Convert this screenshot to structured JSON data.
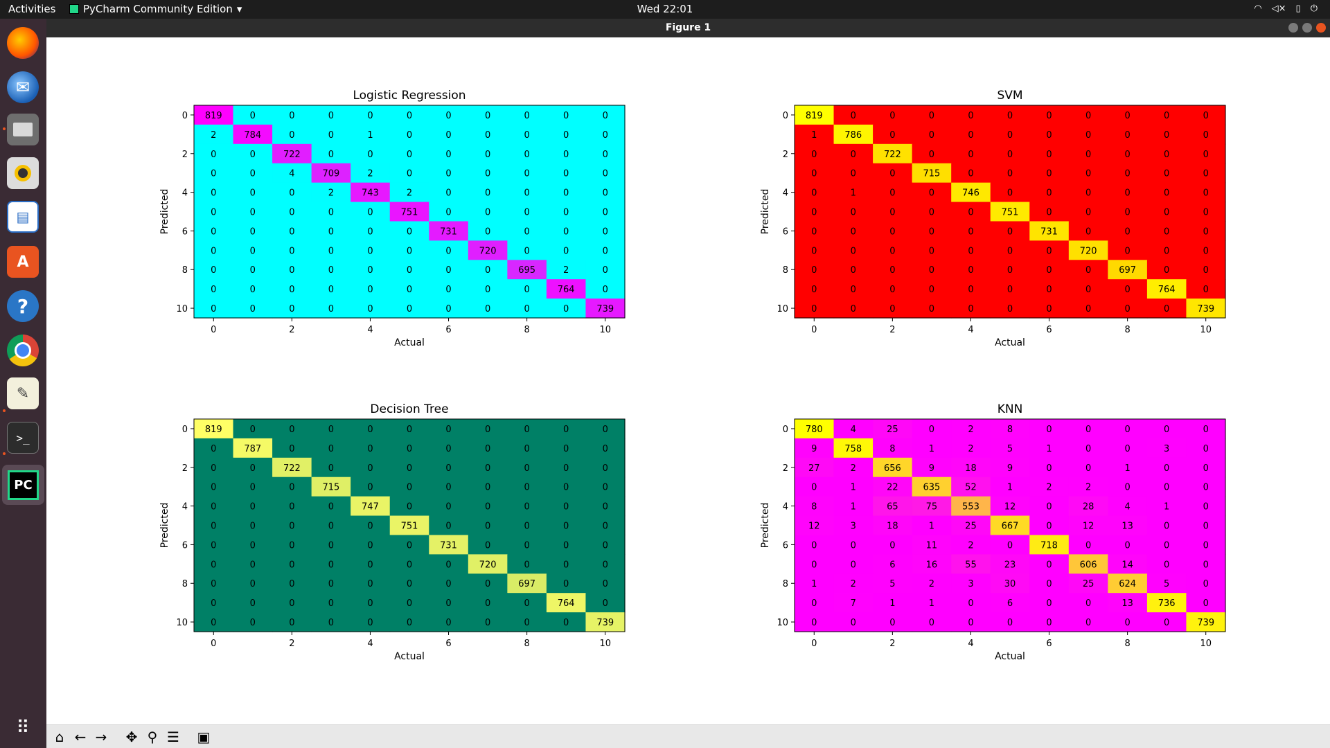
{
  "topbar": {
    "activities": "Activities",
    "app_name": "PyCharm Community Edition",
    "app_menu_icon": "chevron-down-icon",
    "clock": "Wed 22:01",
    "tray_icons": [
      "wifi-icon",
      "volume-muted-icon",
      "battery-icon",
      "power-icon"
    ]
  },
  "window": {
    "title": "Figure 1",
    "controls": [
      "minimize-icon",
      "maximize-icon",
      "close-icon"
    ]
  },
  "dock": {
    "apps": [
      {
        "name": "firefox",
        "icon": "firefox-icon",
        "running": false
      },
      {
        "name": "thunderbird",
        "icon": "mail-icon",
        "running": false
      },
      {
        "name": "files",
        "icon": "files-icon",
        "running": true
      },
      {
        "name": "rhythmbox",
        "icon": "music-icon",
        "running": false
      },
      {
        "name": "libreoffice-writer",
        "icon": "document-icon",
        "running": false
      },
      {
        "name": "software",
        "icon": "software-store-icon",
        "running": false
      },
      {
        "name": "help",
        "icon": "help-icon",
        "running": false
      },
      {
        "name": "chrome",
        "icon": "chrome-icon",
        "running": false
      },
      {
        "name": "text-editor",
        "icon": "text-editor-icon",
        "running": true
      },
      {
        "name": "terminal",
        "icon": "terminal-icon",
        "running": true
      },
      {
        "name": "pycharm",
        "icon": "pycharm-icon",
        "running": true
      },
      {
        "name": "show-applications",
        "icon": "grid-icon",
        "running": false
      }
    ],
    "pycharm_label": "PC",
    "terminal_label": ">_"
  },
  "toolbar": {
    "buttons": [
      "home-icon",
      "back-icon",
      "forward-icon",
      "pan-icon",
      "zoom-icon",
      "configure-subplots-icon",
      "save-icon"
    ]
  },
  "chart_data": [
    {
      "type": "heatmap",
      "title": "Logistic Regression",
      "xlabel": "Actual",
      "ylabel": "Predicted",
      "xticks": [
        0,
        2,
        4,
        6,
        8,
        10
      ],
      "yticks": [
        0,
        2,
        4,
        6,
        8,
        10
      ],
      "colormap": "cool",
      "colors": {
        "low": "#00ffff",
        "high": "#ff00ff"
      },
      "matrix": [
        [
          819,
          0,
          0,
          0,
          0,
          0,
          0,
          0,
          0,
          0,
          0
        ],
        [
          2,
          784,
          0,
          0,
          1,
          0,
          0,
          0,
          0,
          0,
          0
        ],
        [
          0,
          0,
          722,
          0,
          0,
          0,
          0,
          0,
          0,
          0,
          0
        ],
        [
          0,
          0,
          4,
          709,
          2,
          0,
          0,
          0,
          0,
          0,
          0
        ],
        [
          0,
          0,
          0,
          2,
          743,
          2,
          0,
          0,
          0,
          0,
          0
        ],
        [
          0,
          0,
          0,
          0,
          0,
          751,
          0,
          0,
          0,
          0,
          0
        ],
        [
          0,
          0,
          0,
          0,
          0,
          0,
          731,
          0,
          0,
          0,
          0
        ],
        [
          0,
          0,
          0,
          0,
          0,
          0,
          0,
          720,
          0,
          0,
          0
        ],
        [
          0,
          0,
          0,
          0,
          0,
          0,
          0,
          0,
          695,
          2,
          0
        ],
        [
          0,
          0,
          0,
          0,
          0,
          0,
          0,
          0,
          0,
          764,
          0
        ],
        [
          0,
          0,
          0,
          0,
          0,
          0,
          0,
          0,
          0,
          0,
          739
        ]
      ]
    },
    {
      "type": "heatmap",
      "title": "SVM",
      "xlabel": "Actual",
      "ylabel": "Predicted",
      "xticks": [
        0,
        2,
        4,
        6,
        8,
        10
      ],
      "yticks": [
        0,
        2,
        4,
        6,
        8,
        10
      ],
      "colormap": "autumn",
      "colors": {
        "low": "#ff0000",
        "high": "#ffff00"
      },
      "matrix": [
        [
          819,
          0,
          0,
          0,
          0,
          0,
          0,
          0,
          0,
          0,
          0
        ],
        [
          1,
          786,
          0,
          0,
          0,
          0,
          0,
          0,
          0,
          0,
          0
        ],
        [
          0,
          0,
          722,
          0,
          0,
          0,
          0,
          0,
          0,
          0,
          0
        ],
        [
          0,
          0,
          0,
          715,
          0,
          0,
          0,
          0,
          0,
          0,
          0
        ],
        [
          0,
          1,
          0,
          0,
          746,
          0,
          0,
          0,
          0,
          0,
          0
        ],
        [
          0,
          0,
          0,
          0,
          0,
          751,
          0,
          0,
          0,
          0,
          0
        ],
        [
          0,
          0,
          0,
          0,
          0,
          0,
          731,
          0,
          0,
          0,
          0
        ],
        [
          0,
          0,
          0,
          0,
          0,
          0,
          0,
          720,
          0,
          0,
          0
        ],
        [
          0,
          0,
          0,
          0,
          0,
          0,
          0,
          0,
          697,
          0,
          0
        ],
        [
          0,
          0,
          0,
          0,
          0,
          0,
          0,
          0,
          0,
          764,
          0
        ],
        [
          0,
          0,
          0,
          0,
          0,
          0,
          0,
          0,
          0,
          0,
          739
        ]
      ]
    },
    {
      "type": "heatmap",
      "title": "Decision Tree",
      "xlabel": "Actual",
      "ylabel": "Predicted",
      "xticks": [
        0,
        2,
        4,
        6,
        8,
        10
      ],
      "yticks": [
        0,
        2,
        4,
        6,
        8,
        10
      ],
      "colormap": "summer",
      "colors": {
        "low": "#008066",
        "high": "#ffff66"
      },
      "matrix": [
        [
          819,
          0,
          0,
          0,
          0,
          0,
          0,
          0,
          0,
          0,
          0
        ],
        [
          0,
          787,
          0,
          0,
          0,
          0,
          0,
          0,
          0,
          0,
          0
        ],
        [
          0,
          0,
          722,
          0,
          0,
          0,
          0,
          0,
          0,
          0,
          0
        ],
        [
          0,
          0,
          0,
          715,
          0,
          0,
          0,
          0,
          0,
          0,
          0
        ],
        [
          0,
          0,
          0,
          0,
          747,
          0,
          0,
          0,
          0,
          0,
          0
        ],
        [
          0,
          0,
          0,
          0,
          0,
          751,
          0,
          0,
          0,
          0,
          0
        ],
        [
          0,
          0,
          0,
          0,
          0,
          0,
          731,
          0,
          0,
          0,
          0
        ],
        [
          0,
          0,
          0,
          0,
          0,
          0,
          0,
          720,
          0,
          0,
          0
        ],
        [
          0,
          0,
          0,
          0,
          0,
          0,
          0,
          0,
          697,
          0,
          0
        ],
        [
          0,
          0,
          0,
          0,
          0,
          0,
          0,
          0,
          0,
          764,
          0
        ],
        [
          0,
          0,
          0,
          0,
          0,
          0,
          0,
          0,
          0,
          0,
          739
        ]
      ]
    },
    {
      "type": "heatmap",
      "title": "KNN",
      "xlabel": "Actual",
      "ylabel": "Predicted",
      "xticks": [
        0,
        2,
        4,
        6,
        8,
        10
      ],
      "yticks": [
        0,
        2,
        4,
        6,
        8,
        10
      ],
      "colormap": "spring",
      "colors": {
        "low": "#ff00ff",
        "high": "#ffff00"
      },
      "matrix": [
        [
          780,
          4,
          25,
          0,
          2,
          8,
          0,
          0,
          0,
          0,
          0
        ],
        [
          9,
          758,
          8,
          1,
          2,
          5,
          1,
          0,
          0,
          3,
          0
        ],
        [
          27,
          2,
          656,
          9,
          18,
          9,
          0,
          0,
          1,
          0,
          0
        ],
        [
          0,
          1,
          22,
          635,
          52,
          1,
          2,
          2,
          0,
          0,
          0
        ],
        [
          8,
          1,
          65,
          75,
          553,
          12,
          0,
          28,
          4,
          1,
          0
        ],
        [
          12,
          3,
          18,
          1,
          25,
          667,
          0,
          12,
          13,
          0,
          0
        ],
        [
          0,
          0,
          0,
          11,
          2,
          0,
          718,
          0,
          0,
          0,
          0
        ],
        [
          0,
          0,
          6,
          16,
          55,
          23,
          0,
          606,
          14,
          0,
          0
        ],
        [
          1,
          2,
          5,
          2,
          3,
          30,
          0,
          25,
          624,
          5,
          0
        ],
        [
          0,
          7,
          1,
          1,
          0,
          6,
          0,
          0,
          13,
          736,
          0
        ],
        [
          0,
          0,
          0,
          0,
          0,
          0,
          0,
          0,
          0,
          0,
          739
        ]
      ]
    }
  ]
}
